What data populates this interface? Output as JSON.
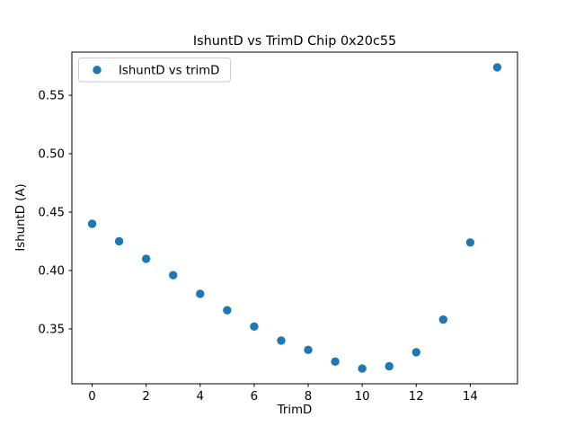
{
  "chart_data": {
    "type": "scatter",
    "title": "IshuntD vs TrimD Chip 0x20c55",
    "xlabel": "TrimD",
    "ylabel": "IshuntD (A)",
    "legend": {
      "label": "IshuntD vs trimD",
      "position": "upper left"
    },
    "x": [
      0,
      1,
      2,
      3,
      4,
      5,
      6,
      7,
      8,
      9,
      10,
      11,
      12,
      13,
      14,
      15
    ],
    "y": [
      0.44,
      0.425,
      0.41,
      0.396,
      0.38,
      0.366,
      0.352,
      0.34,
      0.332,
      0.322,
      0.316,
      0.318,
      0.33,
      0.358,
      0.424,
      0.574
    ],
    "series_name": "IshuntD vs trimD",
    "xlim": [
      -0.75,
      15.75
    ],
    "ylim": [
      0.303,
      0.587
    ],
    "xticks": [
      0,
      2,
      4,
      6,
      8,
      10,
      12,
      14
    ],
    "yticks": [
      0.35,
      0.4,
      0.45,
      0.5,
      0.55
    ],
    "ytick_decimals": 2,
    "grid": false,
    "marker": {
      "shape": "circle",
      "color": "#1f77b4",
      "radius": 4.7
    },
    "colors": {
      "spine": "#000000",
      "legend_border": "#cccccc",
      "background": "#ffffff"
    }
  }
}
